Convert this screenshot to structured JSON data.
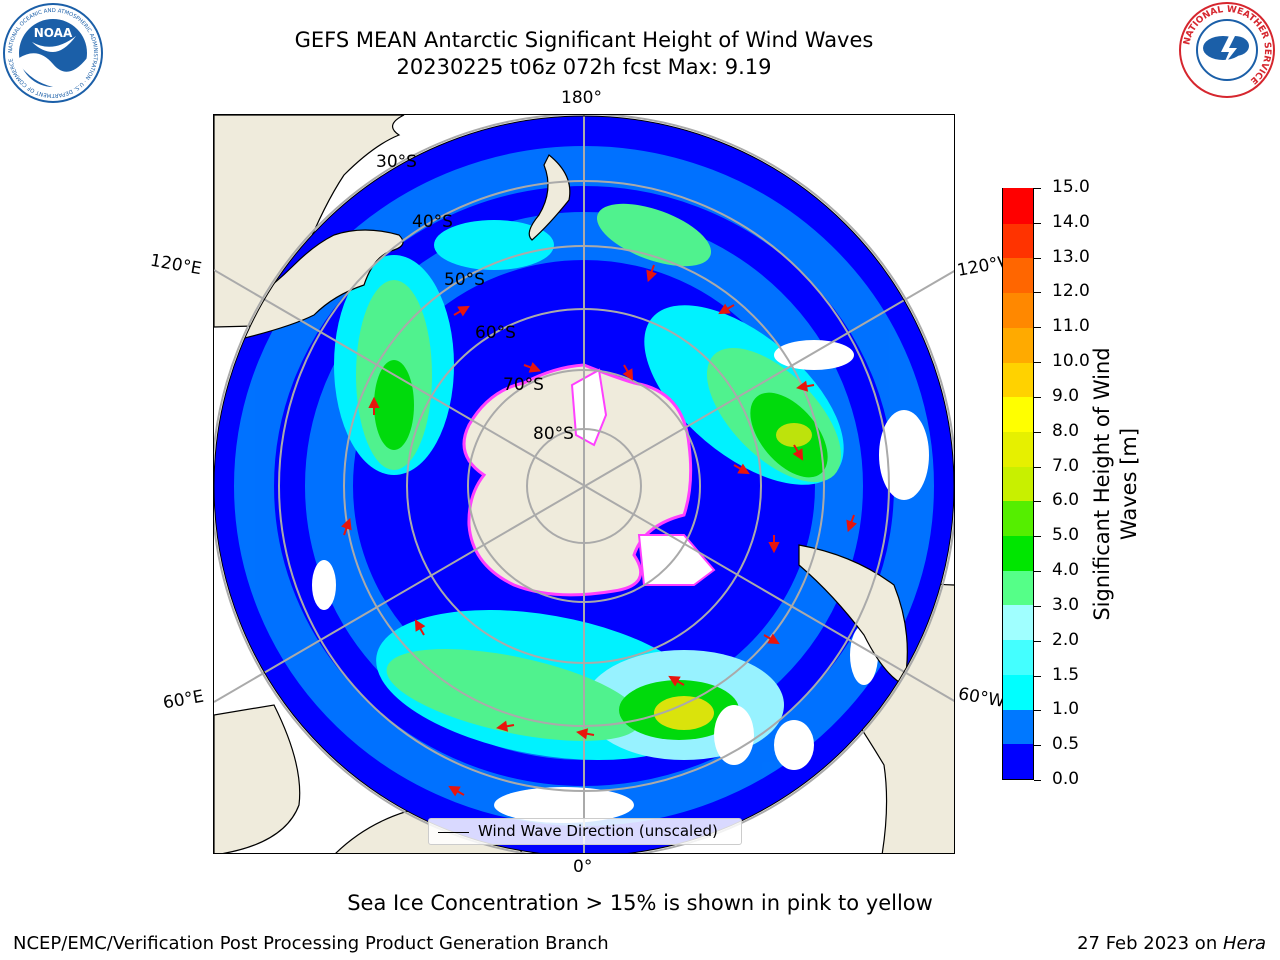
{
  "header": {
    "title_line1": "GEFS MEAN Antarctic Significant Height of Wind Waves",
    "title_line2": "20230225 t06z 072h fcst   Max: 9.19"
  },
  "logos": {
    "left": {
      "name": "NOAA",
      "ring_text": "NATIONAL OCEANIC AND ATMOSPHERIC ADMINISTRATION · U.S. DEPARTMENT OF COMMERCE",
      "color": "#1b5fa8"
    },
    "right": {
      "name": "NATIONAL WEATHER SERVICE",
      "color": "#d6262e"
    }
  },
  "map": {
    "projection": "south-polar-stereographic",
    "land_color": "#efebdc",
    "lon_labels": [
      "180°",
      "120°E",
      "120°W",
      "60°E",
      "60°W",
      "0°"
    ],
    "lat_labels": [
      "30°S",
      "40°S",
      "50°S",
      "60°S",
      "70°S",
      "80°S"
    ],
    "legend_label": "Wind Wave Direction (unscaled)",
    "arrow_color": "#e8150d"
  },
  "colorbar": {
    "label": "Significant Height of Wind Waves [m]",
    "label_line1": "Significant Height of Wind",
    "label_line2": "Waves [m]",
    "ticks": [
      "0.0",
      "0.5",
      "1.0",
      "1.5",
      "2.0",
      "3.0",
      "4.0",
      "5.0",
      "6.0",
      "7.0",
      "8.0",
      "9.0",
      "10.0",
      "11.0",
      "12.0",
      "13.0",
      "14.0",
      "15.0"
    ],
    "colors": [
      "#0000ff",
      "#0078ff",
      "#00ffff",
      "#44ffff",
      "#a0ffff",
      "#55ff88",
      "#00e600",
      "#55ee00",
      "#c8f000",
      "#e6f000",
      "#ffff00",
      "#ffd200",
      "#ffaa00",
      "#ff8800",
      "#ff6600",
      "#ff3300",
      "#ff0000"
    ]
  },
  "note": "Sea Ice Concentration > 15% is shown in pink to yellow",
  "footer": {
    "left": "NCEP/EMC/Verification Post Processing Product Generation Branch",
    "right_prefix": "27 Feb 2023 on ",
    "right_italic": "Hera"
  }
}
